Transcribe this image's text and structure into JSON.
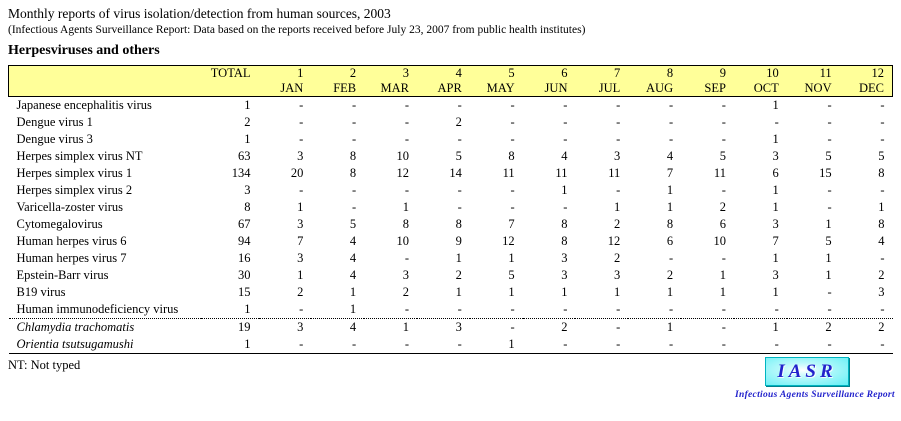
{
  "page": {
    "title": "Monthly reports of virus isolation/detection from human sources, 2003",
    "subtitle": "(Infectious Agents Surveillance Report: Data based on the reports received before July 23, 2007 from public health institutes)",
    "section_heading": "Herpesviruses and others",
    "footnote": "NT: Not typed"
  },
  "table": {
    "total_label": "TOTAL",
    "month_numbers": [
      "1",
      "2",
      "3",
      "4",
      "5",
      "6",
      "7",
      "8",
      "9",
      "10",
      "11",
      "12"
    ],
    "month_names": [
      "JAN",
      "FEB",
      "MAR",
      "APR",
      "MAY",
      "JUN",
      "JUL",
      "AUG",
      "SEP",
      "OCT",
      "NOV",
      "DEC"
    ],
    "rows": [
      {
        "name": "Japanese encephalitis virus",
        "italic": false,
        "separator_above": false,
        "total": "1",
        "values": [
          "-",
          "-",
          "-",
          "-",
          "-",
          "-",
          "-",
          "-",
          "-",
          "1",
          "-",
          "-"
        ]
      },
      {
        "name": "Dengue virus 1",
        "italic": false,
        "separator_above": false,
        "total": "2",
        "values": [
          "-",
          "-",
          "-",
          "2",
          "-",
          "-",
          "-",
          "-",
          "-",
          "-",
          "-",
          "-"
        ]
      },
      {
        "name": "Dengue virus 3",
        "italic": false,
        "separator_above": false,
        "total": "1",
        "values": [
          "-",
          "-",
          "-",
          "-",
          "-",
          "-",
          "-",
          "-",
          "-",
          "1",
          "-",
          "-"
        ]
      },
      {
        "name": "Herpes simplex virus NT",
        "italic": false,
        "separator_above": false,
        "total": "63",
        "values": [
          "3",
          "8",
          "10",
          "5",
          "8",
          "4",
          "3",
          "4",
          "5",
          "3",
          "5",
          "5"
        ]
      },
      {
        "name": "Herpes simplex virus 1",
        "italic": false,
        "separator_above": false,
        "total": "134",
        "values": [
          "20",
          "8",
          "12",
          "14",
          "11",
          "11",
          "11",
          "7",
          "11",
          "6",
          "15",
          "8"
        ]
      },
      {
        "name": "Herpes simplex virus 2",
        "italic": false,
        "separator_above": false,
        "total": "3",
        "values": [
          "-",
          "-",
          "-",
          "-",
          "-",
          "1",
          "-",
          "1",
          "-",
          "1",
          "-",
          "-"
        ]
      },
      {
        "name": "Varicella-zoster virus",
        "italic": false,
        "separator_above": false,
        "total": "8",
        "values": [
          "1",
          "-",
          "1",
          "-",
          "-",
          "-",
          "1",
          "1",
          "2",
          "1",
          "-",
          "1"
        ]
      },
      {
        "name": "Cytomegalovirus",
        "italic": false,
        "separator_above": false,
        "total": "67",
        "values": [
          "3",
          "5",
          "8",
          "8",
          "7",
          "8",
          "2",
          "8",
          "6",
          "3",
          "1",
          "8"
        ]
      },
      {
        "name": "Human herpes virus 6",
        "italic": false,
        "separator_above": false,
        "total": "94",
        "values": [
          "7",
          "4",
          "10",
          "9",
          "12",
          "8",
          "12",
          "6",
          "10",
          "7",
          "5",
          "4"
        ]
      },
      {
        "name": "Human herpes virus 7",
        "italic": false,
        "separator_above": false,
        "total": "16",
        "values": [
          "3",
          "4",
          "-",
          "1",
          "1",
          "3",
          "2",
          "-",
          "-",
          "1",
          "1",
          "-"
        ]
      },
      {
        "name": "Epstein-Barr virus",
        "italic": false,
        "separator_above": false,
        "total": "30",
        "values": [
          "1",
          "4",
          "3",
          "2",
          "5",
          "3",
          "3",
          "2",
          "1",
          "3",
          "1",
          "2"
        ]
      },
      {
        "name": "B19 virus",
        "italic": false,
        "separator_above": false,
        "total": "15",
        "values": [
          "2",
          "1",
          "2",
          "1",
          "1",
          "1",
          "1",
          "1",
          "1",
          "1",
          "-",
          "3"
        ]
      },
      {
        "name": "Human immunodeficiency virus",
        "italic": false,
        "separator_above": false,
        "total": "1",
        "values": [
          "-",
          "1",
          "-",
          "-",
          "-",
          "-",
          "-",
          "-",
          "-",
          "-",
          "-",
          "-"
        ]
      },
      {
        "name": "Chlamydia trachomatis",
        "italic": true,
        "separator_above": true,
        "total": "19",
        "values": [
          "3",
          "4",
          "1",
          "3",
          "-",
          "2",
          "-",
          "1",
          "-",
          "1",
          "2",
          "2"
        ]
      },
      {
        "name": "Orientia tsutsugamushi",
        "italic": true,
        "separator_above": false,
        "total": "1",
        "values": [
          "-",
          "-",
          "-",
          "-",
          "1",
          "-",
          "-",
          "-",
          "-",
          "-",
          "-",
          "-"
        ]
      }
    ]
  },
  "logo": {
    "acronym": "IASR",
    "tagline": "Infectious Agents Surveillance Report"
  },
  "colors": {
    "header_bg": "#FFFF99",
    "table_border": "#000000",
    "logo_box_bg": "#66F2F6",
    "logo_text": "#2222CC"
  }
}
